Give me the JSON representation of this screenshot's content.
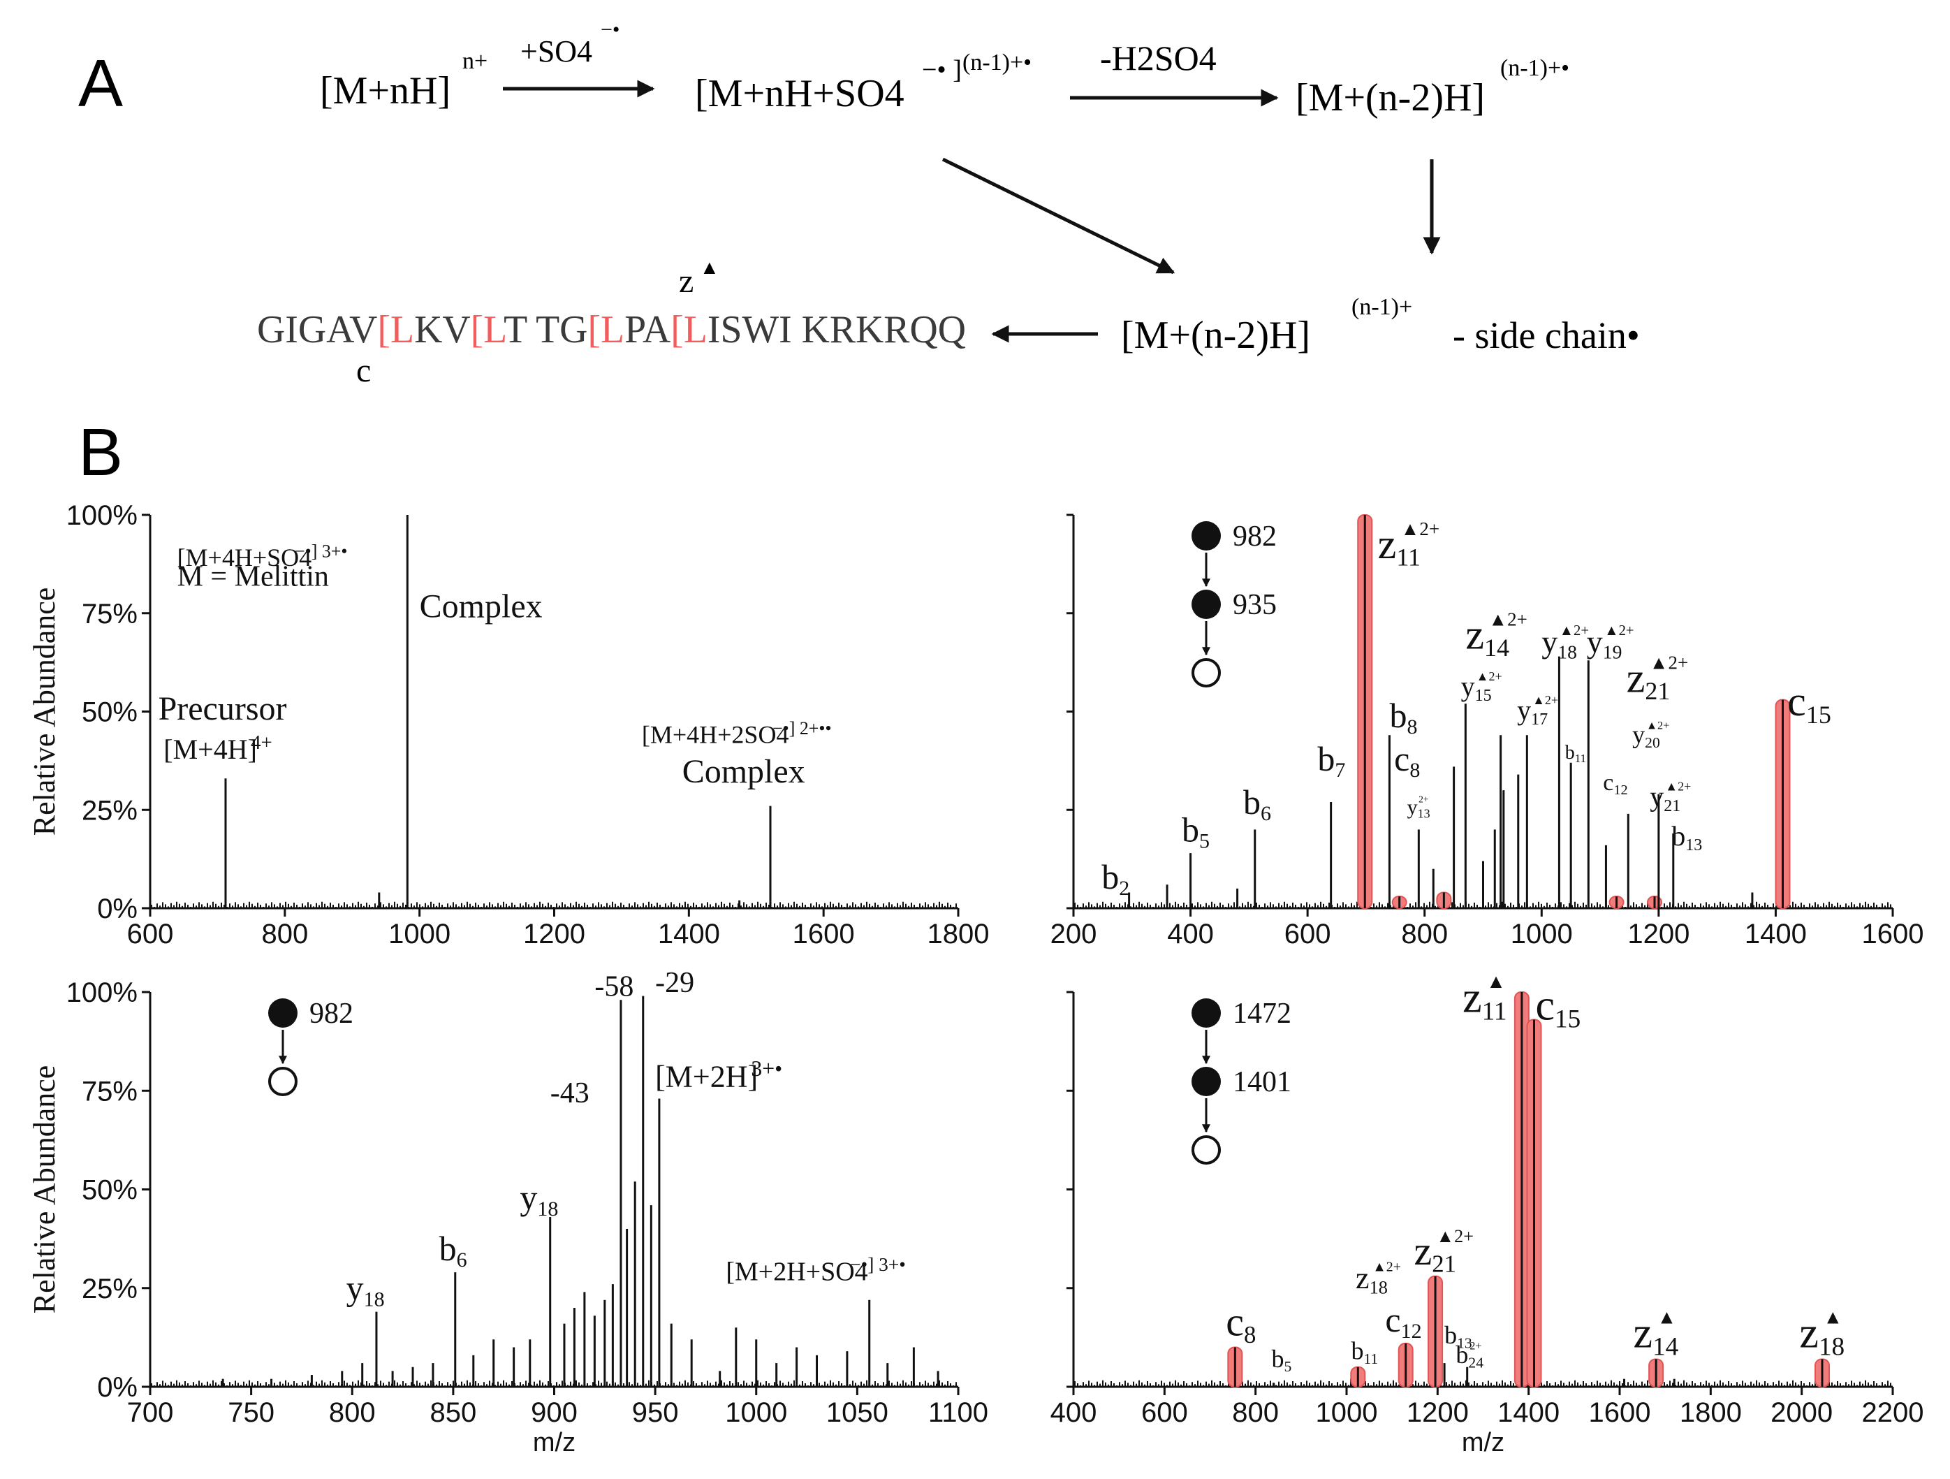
{
  "panel_labels": {
    "a": "A",
    "b": "B"
  },
  "scheme": {
    "reactant": "[M+nH]",
    "reactant_charge": "n+",
    "arrow1_label": "+SO4",
    "arrow1_label_sup": "−•",
    "complex": "[M+nH+SO4",
    "complex_sup": "−• ]",
    "complex_charge": "(n-1)+•",
    "arrow2_label": "-H2SO4",
    "radical": "[M+(n-2)H]",
    "radical_charge": "(n-1)+•",
    "product": "[M+(n-2)H]",
    "product_charge": "(n-1)+",
    "product_suffix": "- side chain•",
    "sequence": [
      {
        "t": "GIGAV",
        "red": false
      },
      {
        "t": "[",
        "red": true
      },
      {
        "t": "L",
        "red": true
      },
      {
        "t": "KV",
        "red": false
      },
      {
        "t": "[",
        "red": true
      },
      {
        "t": "L",
        "red": true
      },
      {
        "t": "T TG",
        "red": false
      },
      {
        "t": "[",
        "red": true
      },
      {
        "t": "L",
        "red": true
      },
      {
        "t": "PA",
        "red": false
      },
      {
        "t": "[",
        "red": true
      },
      {
        "t": "L",
        "red": true
      },
      {
        "t": "ISWI KRKRQQ",
        "red": false
      }
    ],
    "c_label": "c",
    "z_label": "z",
    "z_mark": "▲"
  },
  "colors": {
    "highlight": "#f07c7c",
    "highlight_stroke": "#e05555",
    "sequence_red": "#f25c5c",
    "ink": "#111111"
  },
  "chart_data": [
    {
      "type": "bar",
      "id": "p1",
      "xlim": [
        600,
        1800
      ],
      "ylim": [
        0,
        100
      ],
      "xticks": [
        "600",
        "800",
        "1000",
        "1200",
        "1400",
        "1600",
        "1800"
      ],
      "yticks": [
        "0%",
        "25%",
        "50%",
        "75%",
        "100%"
      ],
      "ylabel": "Relative Abundance",
      "xlabel": "",
      "peaks": [
        [
          712,
          33,
          0
        ],
        [
          940,
          4,
          0
        ],
        [
          982,
          100,
          0
        ],
        [
          1475,
          2,
          0
        ],
        [
          1521,
          26,
          0
        ]
      ],
      "annotations": [
        {
          "text": "M = Melittin",
          "x": 640,
          "y": 82,
          "size": 42
        },
        {
          "text": "[M+4H+SO4",
          "x": 640,
          "y": 87,
          "size": 36,
          "sup": "−•] 3+•",
          "anchor": "middle",
          "ax": 982,
          "ay": 87
        },
        {
          "text": "Complex",
          "x": 1000,
          "y": 74,
          "size": 48
        },
        {
          "text": "Precursor",
          "x": 612,
          "y": 48,
          "size": 48
        },
        {
          "text": "[M+4H]",
          "sup": "4+",
          "x": 620,
          "y": 38,
          "size": 40
        },
        {
          "text": "[M+4H+2SO4",
          "sup": "−•] 2+••",
          "x": 1330,
          "y": 42,
          "size": 36
        },
        {
          "text": "Complex",
          "x": 1390,
          "y": 32,
          "size": 48
        }
      ],
      "markers": []
    },
    {
      "type": "bar",
      "id": "p2",
      "xlim": [
        200,
        1600
      ],
      "ylim": [
        0,
        100
      ],
      "xticks": [
        "200",
        "400",
        "600",
        "800",
        "1000",
        "1200",
        "1400",
        "1600"
      ],
      "yticks": [],
      "ylabel": "",
      "xlabel": "",
      "peaks": [
        [
          295,
          4,
          0
        ],
        [
          360,
          6,
          0
        ],
        [
          400,
          14,
          0
        ],
        [
          480,
          5,
          0
        ],
        [
          510,
          20,
          0
        ],
        [
          640,
          27,
          0
        ],
        [
          698,
          100,
          1
        ],
        [
          740,
          44,
          0
        ],
        [
          757,
          3,
          1
        ],
        [
          790,
          20,
          0
        ],
        [
          815,
          10,
          0
        ],
        [
          833,
          4,
          1
        ],
        [
          850,
          36,
          0
        ],
        [
          870,
          52,
          0
        ],
        [
          900,
          12,
          0
        ],
        [
          920,
          20,
          0
        ],
        [
          930,
          44,
          0
        ],
        [
          935,
          30,
          0
        ],
        [
          960,
          34,
          0
        ],
        [
          975,
          44,
          0
        ],
        [
          1030,
          64,
          0
        ],
        [
          1050,
          37,
          0
        ],
        [
          1080,
          63,
          0
        ],
        [
          1110,
          16,
          0
        ],
        [
          1128,
          3,
          1
        ],
        [
          1148,
          24,
          0
        ],
        [
          1193,
          3,
          1
        ],
        [
          1200,
          29,
          0
        ],
        [
          1225,
          19,
          0
        ],
        [
          1360,
          4,
          0
        ],
        [
          1412,
          53,
          1
        ]
      ],
      "annotations": [
        {
          "text": "b2",
          "x": 248,
          "y": 5,
          "size": 50,
          "sub": true
        },
        {
          "text": "b5",
          "x": 385,
          "y": 17,
          "size": 50,
          "sub": true
        },
        {
          "text": "b6",
          "x": 490,
          "y": 24,
          "size": 50,
          "sub": true
        },
        {
          "text": "b7",
          "x": 617,
          "y": 35,
          "size": 50,
          "sub": true
        },
        {
          "text": "b8",
          "x": 740,
          "y": 46,
          "size": 50,
          "sub": true
        },
        {
          "text": "c8",
          "x": 748,
          "y": 35,
          "size": 50,
          "sub": true
        },
        {
          "text": "y13",
          "x": 770,
          "y": 24,
          "size": 30,
          "sub": true,
          "supmark": "2+"
        },
        {
          "text": "y15",
          "x": 862,
          "y": 54,
          "size": 40,
          "sub": true,
          "supmark": "▲2+"
        },
        {
          "text": "y17",
          "x": 958,
          "y": 48,
          "size": 40,
          "sub": true,
          "supmark": "▲2+"
        },
        {
          "text": "b11",
          "x": 1040,
          "y": 38,
          "size": 28,
          "sub": true
        },
        {
          "text": "y18",
          "x": 1000,
          "y": 65,
          "size": 46,
          "sub": true,
          "supmark": "▲2+"
        },
        {
          "text": "y19",
          "x": 1077,
          "y": 65,
          "size": 46,
          "sub": true,
          "supmark": "▲2+"
        },
        {
          "text": "c12",
          "x": 1105,
          "y": 30,
          "size": 34,
          "sub": true
        },
        {
          "text": "y20",
          "x": 1155,
          "y": 42,
          "size": 36,
          "sub": true,
          "supmark": "▲2+"
        },
        {
          "text": "y21",
          "x": 1185,
          "y": 26,
          "size": 40,
          "sub": true,
          "supmark": "▲2+"
        },
        {
          "text": "b13",
          "x": 1222,
          "y": 16,
          "size": 40,
          "sub": true
        },
        {
          "text": "z11",
          "x": 720,
          "y": 89,
          "size": 60,
          "sub": true,
          "supmark": "▲2+"
        },
        {
          "text": "z14",
          "x": 870,
          "y": 66,
          "size": 60,
          "sub": true,
          "supmark": "▲2+"
        },
        {
          "text": "z21",
          "x": 1145,
          "y": 55,
          "size": 60,
          "sub": true,
          "supmark": "▲2+"
        },
        {
          "text": "c15",
          "x": 1420,
          "y": 49,
          "size": 60,
          "sub": true
        }
      ],
      "markers": [
        {
          "type": "filled",
          "label": "982"
        },
        {
          "type": "filled",
          "label": "935"
        },
        {
          "type": "open",
          "label": ""
        }
      ]
    },
    {
      "type": "bar",
      "id": "p3",
      "xlim": [
        700,
        1100
      ],
      "ylim": [
        0,
        100
      ],
      "xticks": [
        "700",
        "750",
        "800",
        "850",
        "900",
        "950",
        "1000",
        "1050",
        "1100"
      ],
      "yticks": [
        "0%",
        "25%",
        "50%",
        "75%",
        "100%"
      ],
      "ylabel": "Relative Abundance",
      "xlabel": "m/z",
      "peaks": [
        [
          736,
          2,
          0
        ],
        [
          760,
          2,
          0
        ],
        [
          780,
          3,
          0
        ],
        [
          795,
          4,
          0
        ],
        [
          805,
          6,
          0
        ],
        [
          812,
          19,
          0
        ],
        [
          820,
          4,
          0
        ],
        [
          830,
          5,
          0
        ],
        [
          840,
          6,
          0
        ],
        [
          851,
          29,
          0
        ],
        [
          860,
          8,
          0
        ],
        [
          870,
          12,
          0
        ],
        [
          880,
          10,
          0
        ],
        [
          888,
          12,
          0
        ],
        [
          898,
          43,
          0
        ],
        [
          905,
          16,
          0
        ],
        [
          910,
          20,
          0
        ],
        [
          915,
          24,
          0
        ],
        [
          920,
          18,
          0
        ],
        [
          925,
          22,
          0
        ],
        [
          929,
          26,
          0
        ],
        [
          933,
          98,
          0
        ],
        [
          936,
          40,
          0
        ],
        [
          940,
          52,
          0
        ],
        [
          944,
          99,
          0
        ],
        [
          948,
          46,
          0
        ],
        [
          952,
          73,
          0
        ],
        [
          958,
          16,
          0
        ],
        [
          968,
          12,
          0
        ],
        [
          982,
          4,
          0
        ],
        [
          990,
          15,
          0
        ],
        [
          1000,
          12,
          0
        ],
        [
          1010,
          6,
          0
        ],
        [
          1020,
          10,
          0
        ],
        [
          1030,
          8,
          0
        ],
        [
          1045,
          9,
          0
        ],
        [
          1056,
          22,
          0
        ],
        [
          1065,
          6,
          0
        ],
        [
          1078,
          10,
          0
        ],
        [
          1090,
          4,
          0
        ]
      ],
      "annotations": [
        {
          "text": "y18",
          "x": 797,
          "y": 22,
          "size": 50,
          "sub": true
        },
        {
          "text": "b6",
          "x": 843,
          "y": 32,
          "size": 50,
          "sub": true
        },
        {
          "text": "y18",
          "x": 883,
          "y": 45,
          "size": 50,
          "sub": true
        },
        {
          "text": "-58",
          "x": 920,
          "y": 99,
          "size": 42
        },
        {
          "text": "-29",
          "x": 950,
          "y": 100,
          "size": 42
        },
        {
          "text": "-43",
          "x": 898,
          "y": 72,
          "size": 42
        },
        {
          "text": "[M+2H]",
          "sup": "3+•",
          "x": 950,
          "y": 76,
          "size": 44
        },
        {
          "text": "[M+2H+SO4",
          "sup": "−•] 3+•",
          "x": 985,
          "y": 27,
          "size": 38
        }
      ],
      "markers": [
        {
          "type": "filled",
          "label": "982"
        },
        {
          "type": "open",
          "label": ""
        }
      ]
    },
    {
      "type": "bar",
      "id": "p4",
      "xlim": [
        400,
        2200
      ],
      "ylim": [
        0,
        100
      ],
      "xticks": [
        "400",
        "600",
        "800",
        "1000",
        "1200",
        "1400",
        "1600",
        "1800",
        "2000",
        "2200"
      ],
      "yticks": [],
      "ylabel": "",
      "xlabel": "m/z",
      "peaks": [
        [
          755,
          10,
          1
        ],
        [
          840,
          1,
          0
        ],
        [
          1010,
          2,
          0
        ],
        [
          1025,
          5,
          1
        ],
        [
          1130,
          11,
          1
        ],
        [
          1195,
          28,
          1
        ],
        [
          1215,
          6,
          0
        ],
        [
          1265,
          5,
          0
        ],
        [
          1385,
          100,
          1
        ],
        [
          1400,
          25,
          0
        ],
        [
          1412,
          93,
          1
        ],
        [
          1610,
          2,
          0
        ],
        [
          1680,
          7,
          1
        ],
        [
          1720,
          2,
          0
        ],
        [
          2045,
          7,
          1
        ]
      ],
      "annotations": [
        {
          "text": "c8",
          "x": 735,
          "y": 13,
          "size": 58,
          "sub": true
        },
        {
          "text": "b5",
          "x": 835,
          "y": 5,
          "size": 36,
          "sub": true
        },
        {
          "text": "b11",
          "x": 1010,
          "y": 7,
          "size": 36,
          "sub": true
        },
        {
          "text": "c12",
          "x": 1085,
          "y": 14,
          "size": 50,
          "sub": true
        },
        {
          "text": "z21",
          "x": 1148,
          "y": 31,
          "size": 58,
          "sub": true,
          "supmark": "▲2+"
        },
        {
          "text": "b13",
          "x": 1215,
          "y": 11,
          "size": 36,
          "sub": true
        },
        {
          "text": "b24",
          "x": 1240,
          "y": 6,
          "size": 36,
          "sub": true,
          "supmark": "2+"
        },
        {
          "text": "z18",
          "x": 1020,
          "y": 25,
          "size": 44,
          "sub": true,
          "supmark": "▲2+"
        },
        {
          "text": "z11",
          "x": 1255,
          "y": 95,
          "size": 62,
          "sub": true,
          "supmark": "▲"
        },
        {
          "text": "c15",
          "x": 1415,
          "y": 93,
          "size": 62,
          "sub": true
        },
        {
          "text": "z14",
          "x": 1630,
          "y": 10,
          "size": 62,
          "sub": true,
          "supmark": "▲"
        },
        {
          "text": "z18",
          "x": 1995,
          "y": 10,
          "size": 62,
          "sub": true,
          "supmark": "▲"
        }
      ],
      "markers": [
        {
          "type": "filled",
          "label": "1472"
        },
        {
          "type": "filled",
          "label": "1401"
        },
        {
          "type": "open",
          "label": ""
        }
      ]
    }
  ]
}
